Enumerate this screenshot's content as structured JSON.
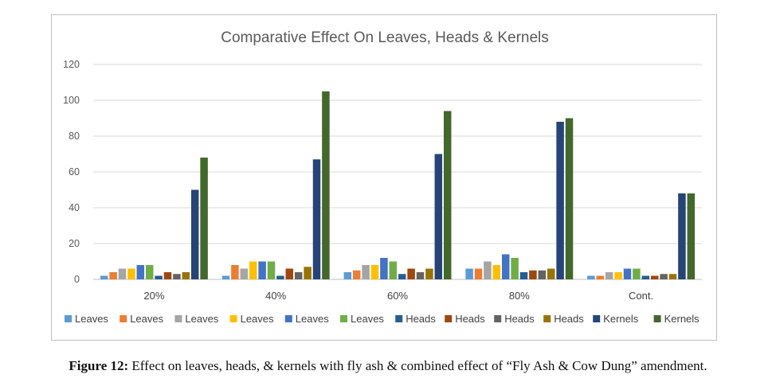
{
  "chart_data": {
    "type": "bar",
    "title": "Comparative Effect On Leaves, Heads & Kernels",
    "xlabel": "",
    "ylabel": "",
    "ylim": [
      0,
      120
    ],
    "yticks": [
      0,
      20,
      40,
      60,
      80,
      100,
      120
    ],
    "categories": [
      "20%",
      "40%",
      "60%",
      "80%",
      "Cont."
    ],
    "legend_position": "bottom",
    "series": [
      {
        "name": "Leaves",
        "color": "#5b9bd5",
        "values": [
          2,
          2,
          4,
          6,
          2
        ]
      },
      {
        "name": "Leaves",
        "color": "#ed7d31",
        "values": [
          4,
          8,
          5,
          6,
          2
        ]
      },
      {
        "name": "Leaves",
        "color": "#a5a5a5",
        "values": [
          6,
          6,
          8,
          10,
          4
        ]
      },
      {
        "name": "Leaves",
        "color": "#ffc000",
        "values": [
          6,
          10,
          8,
          8,
          4
        ]
      },
      {
        "name": "Leaves",
        "color": "#4472c4",
        "values": [
          8,
          10,
          12,
          14,
          6
        ]
      },
      {
        "name": "Leaves",
        "color": "#70ad47",
        "values": [
          8,
          10,
          10,
          12,
          6
        ]
      },
      {
        "name": "Heads",
        "color": "#255e91",
        "values": [
          2,
          2,
          3,
          4,
          2
        ]
      },
      {
        "name": "Heads",
        "color": "#9e480e",
        "values": [
          4,
          6,
          6,
          5,
          2
        ]
      },
      {
        "name": "Heads",
        "color": "#636363",
        "values": [
          3,
          4,
          4,
          5,
          3
        ]
      },
      {
        "name": "Heads",
        "color": "#997300",
        "values": [
          4,
          7,
          6,
          6,
          3
        ]
      },
      {
        "name": "Kernels",
        "color": "#264478",
        "values": [
          50,
          67,
          70,
          88,
          48
        ]
      },
      {
        "name": "Kernels",
        "color": "#43682b",
        "values": [
          68,
          105,
          94,
          90,
          48
        ]
      }
    ]
  },
  "caption": {
    "label": "Figure 12:",
    "text": " Effect on leaves, heads, & kernels with fly ash & combined effect of “Fly Ash & Cow Dung” amendment."
  }
}
